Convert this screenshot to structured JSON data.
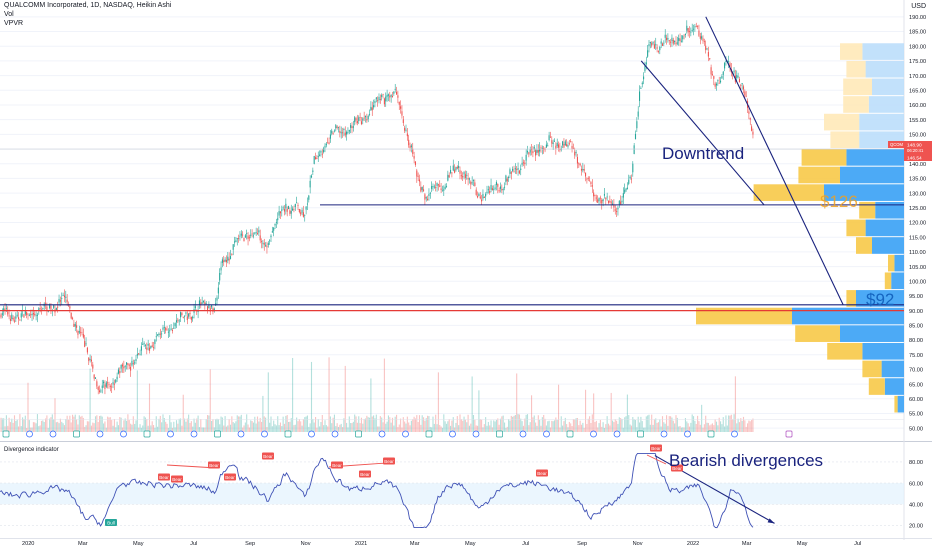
{
  "header": {
    "title": "QUALCOMM Incorporated, 1D, NASDAQ, Heikin Ashi",
    "vol_label": "Vol",
    "vpvr_label": "VPVR",
    "currency": "USD"
  },
  "price_badges": {
    "symbol": "QCOM",
    "last_price": "148.90",
    "countdown": "06:20:41",
    "second_price": "146.54"
  },
  "annotations": {
    "downtrend": "Downtrend",
    "level_126": "$126",
    "level_92": "$92",
    "bearish": "Bearish divergences"
  },
  "indicator": {
    "title": "Divergence indicator",
    "bull_label": "Bull",
    "bear_label": "Bear",
    "bear_markers": [
      1,
      2,
      3,
      4,
      5,
      6,
      7,
      8,
      9,
      10,
      11
    ]
  },
  "colors": {
    "up": "#26a69a",
    "down": "#ef5350",
    "trendline": "#1a237e",
    "support_red": "#e53935",
    "vpvr_blue": "#42a5f5",
    "vpvr_yellow": "#f7c948",
    "osc_line": "#3f51b5"
  },
  "chart_data": [
    {
      "type": "candlestick",
      "title": "QUALCOMM Incorporated, 1D, NASDAQ, Heikin Ashi",
      "x_ticks": [
        "2020",
        "Mar",
        "May",
        "Jul",
        "Sep",
        "Nov",
        "2021",
        "Mar",
        "May",
        "Jul",
        "Sep",
        "Nov",
        "2022",
        "Mar",
        "May",
        "Jul"
      ],
      "y_ticks": [
        190,
        185,
        180,
        175,
        170,
        165,
        160,
        155,
        150,
        145,
        140,
        135,
        130,
        125,
        120,
        115,
        110,
        105,
        100,
        95,
        90,
        85,
        80,
        75,
        70,
        65,
        60,
        55,
        50
      ],
      "ylim": [
        47,
        193
      ],
      "close_path": [
        [
          "2019-12-01",
          89
        ],
        [
          "2019-12-15",
          88
        ],
        [
          "2020-01-02",
          88
        ],
        [
          "2020-01-15",
          90
        ],
        [
          "2020-02-01",
          92
        ],
        [
          "2020-02-12",
          93
        ],
        [
          "2020-02-25",
          83
        ],
        [
          "2020-03-10",
          73
        ],
        [
          "2020-03-20",
          62
        ],
        [
          "2020-04-05",
          67
        ],
        [
          "2020-04-25",
          73
        ],
        [
          "2020-05-15",
          79
        ],
        [
          "2020-06-05",
          84
        ],
        [
          "2020-06-25",
          89
        ],
        [
          "2020-07-15",
          92
        ],
        [
          "2020-07-25",
          91
        ],
        [
          "2020-07-31",
          105
        ],
        [
          "2020-08-15",
          112
        ],
        [
          "2020-08-31",
          117
        ],
        [
          "2020-09-20",
          113
        ],
        [
          "2020-10-10",
          126
        ],
        [
          "2020-10-31",
          123
        ],
        [
          "2020-11-10",
          140
        ],
        [
          "2020-11-30",
          150
        ],
        [
          "2020-12-20",
          152
        ],
        [
          "2021-01-10",
          157
        ],
        [
          "2021-01-25",
          163
        ],
        [
          "2021-02-10",
          163
        ],
        [
          "2021-02-20",
          151
        ],
        [
          "2021-03-05",
          134
        ],
        [
          "2021-03-15",
          129
        ],
        [
          "2021-03-31",
          133
        ],
        [
          "2021-04-20",
          139
        ],
        [
          "2021-05-10",
          129
        ],
        [
          "2021-05-25",
          131
        ],
        [
          "2021-06-15",
          136
        ],
        [
          "2021-07-05",
          143
        ],
        [
          "2021-07-25",
          147
        ],
        [
          "2021-08-10",
          147
        ],
        [
          "2021-08-25",
          144
        ],
        [
          "2021-09-10",
          131
        ],
        [
          "2021-09-25",
          128
        ],
        [
          "2021-10-08",
          125
        ],
        [
          "2021-10-25",
          134
        ],
        [
          "2021-11-03",
          165
        ],
        [
          "2021-11-15",
          180
        ],
        [
          "2021-12-05",
          182
        ],
        [
          "2021-12-20",
          183
        ],
        [
          "2022-01-05",
          188
        ],
        [
          "2022-01-15",
          179
        ],
        [
          "2022-01-25",
          167
        ],
        [
          "2022-02-10",
          174
        ],
        [
          "2022-02-25",
          166
        ],
        [
          "2022-03-04",
          155
        ],
        [
          "2022-03-09",
          148.9
        ]
      ],
      "horizontal_levels": [
        {
          "price": 126,
          "label": "$126"
        },
        {
          "price": 92,
          "label": "$92"
        },
        {
          "price": 90,
          "label": ""
        }
      ],
      "trendlines": [
        {
          "from": [
            "2021-11-05",
            175
          ],
          "to": [
            "2022-03-20",
            126
          ]
        },
        {
          "from": [
            "2022-01-15",
            190
          ],
          "to": [
            "2022-06-15",
            92
          ]
        }
      ],
      "vpvr_profile": [
        {
          "price": 178,
          "blue": 13,
          "yellow": 7
        },
        {
          "price": 172,
          "blue": 12,
          "yellow": 6
        },
        {
          "price": 166,
          "blue": 10,
          "yellow": 9
        },
        {
          "price": 160,
          "blue": 11,
          "yellow": 8
        },
        {
          "price": 154,
          "blue": 14,
          "yellow": 11
        },
        {
          "price": 148,
          "blue": 14,
          "yellow": 9
        },
        {
          "price": 142,
          "blue": 18,
          "yellow": 14
        },
        {
          "price": 136,
          "blue": 20,
          "yellow": 13
        },
        {
          "price": 130,
          "blue": 25,
          "yellow": 22
        },
        {
          "price": 124,
          "blue": 9,
          "yellow": 5
        },
        {
          "price": 118,
          "blue": 12,
          "yellow": 6
        },
        {
          "price": 112,
          "blue": 10,
          "yellow": 5
        },
        {
          "price": 106,
          "blue": 3,
          "yellow": 2
        },
        {
          "price": 100,
          "blue": 4,
          "yellow": 2
        },
        {
          "price": 94,
          "blue": 15,
          "yellow": 3
        },
        {
          "price": 88,
          "blue": 35,
          "yellow": 30
        },
        {
          "price": 82,
          "blue": 20,
          "yellow": 14
        },
        {
          "price": 76,
          "blue": 13,
          "yellow": 11
        },
        {
          "price": 70,
          "blue": 7,
          "yellow": 6
        },
        {
          "price": 64,
          "blue": 6,
          "yellow": 5
        },
        {
          "price": 58,
          "blue": 2,
          "yellow": 1
        }
      ]
    },
    {
      "type": "line",
      "title": "Divergence indicator",
      "y_ticks": [
        80,
        60,
        40,
        20
      ],
      "ylim": [
        12,
        95
      ],
      "bands": [
        40,
        60
      ],
      "divergence_line": {
        "from": [
          "2021-11-20",
          86
        ],
        "to": [
          "2022-03-25",
          22
        ]
      }
    }
  ]
}
